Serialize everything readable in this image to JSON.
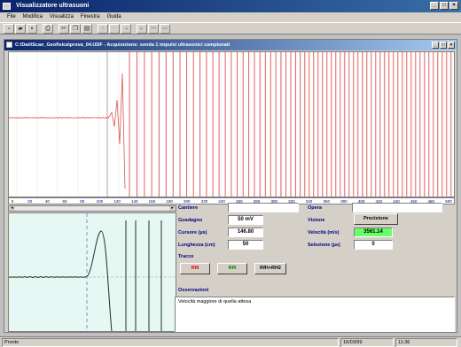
{
  "window": {
    "title": "Visualizzatore ultrasuoni"
  },
  "menu": [
    {
      "id": "file",
      "label": "File"
    },
    {
      "id": "modifica",
      "label": "Modifica"
    },
    {
      "id": "visualizza",
      "label": "Visualizza"
    },
    {
      "id": "finestra",
      "label": "Finestra"
    },
    {
      "id": "guida",
      "label": "Guida"
    }
  ],
  "child": {
    "title": "C:\\Dati\\Scan_Geofisica\\prova_04.UDF - Acquisizione: sonda 1 impulsi ultrasonici campionati"
  },
  "fields": {
    "cantiere_label": "Cantiere",
    "cantiere_value": "",
    "opera_label": "Opera",
    "opera_value": "",
    "guadagno_label": "Guadagno",
    "guadagno_value": "50 mV",
    "cursore_label": "Cursore (µs)",
    "cursore_value": "146.80",
    "lunghezza_label": "Lunghezza (cm)",
    "lunghezza_value": "50",
    "visione_label": "Visione",
    "visione_button": "Precisione",
    "velocita_label": "Velocità (m/s)",
    "velocita_value": "3561.14",
    "selezione_label": "Selezione (µs)",
    "selezione_value": "0",
    "tracce_label": "Tracce",
    "btn_red": "Rfll",
    "btn_green": "Rfll",
    "btn_both": "RfH+RH2",
    "osservazioni_label": "Osservazioni",
    "osservazioni_text": "Velocità maggiore di quella attesa"
  },
  "scale": {
    "ticks": [
      "0",
      "20",
      "40",
      "60",
      "80",
      "100",
      "120",
      "140",
      "160",
      "180",
      "200",
      "220",
      "240",
      "260",
      "280",
      "300",
      "320",
      "340",
      "360",
      "380",
      "400",
      "420",
      "440",
      "460",
      "480",
      "500"
    ]
  },
  "status": {
    "left": "Pronto",
    "right1": "16/03/99",
    "right2": "11:36"
  },
  "colors": {
    "trace": "#e05050",
    "zoom_trace": "#203020",
    "panel_bg": "#e6f7f4"
  }
}
